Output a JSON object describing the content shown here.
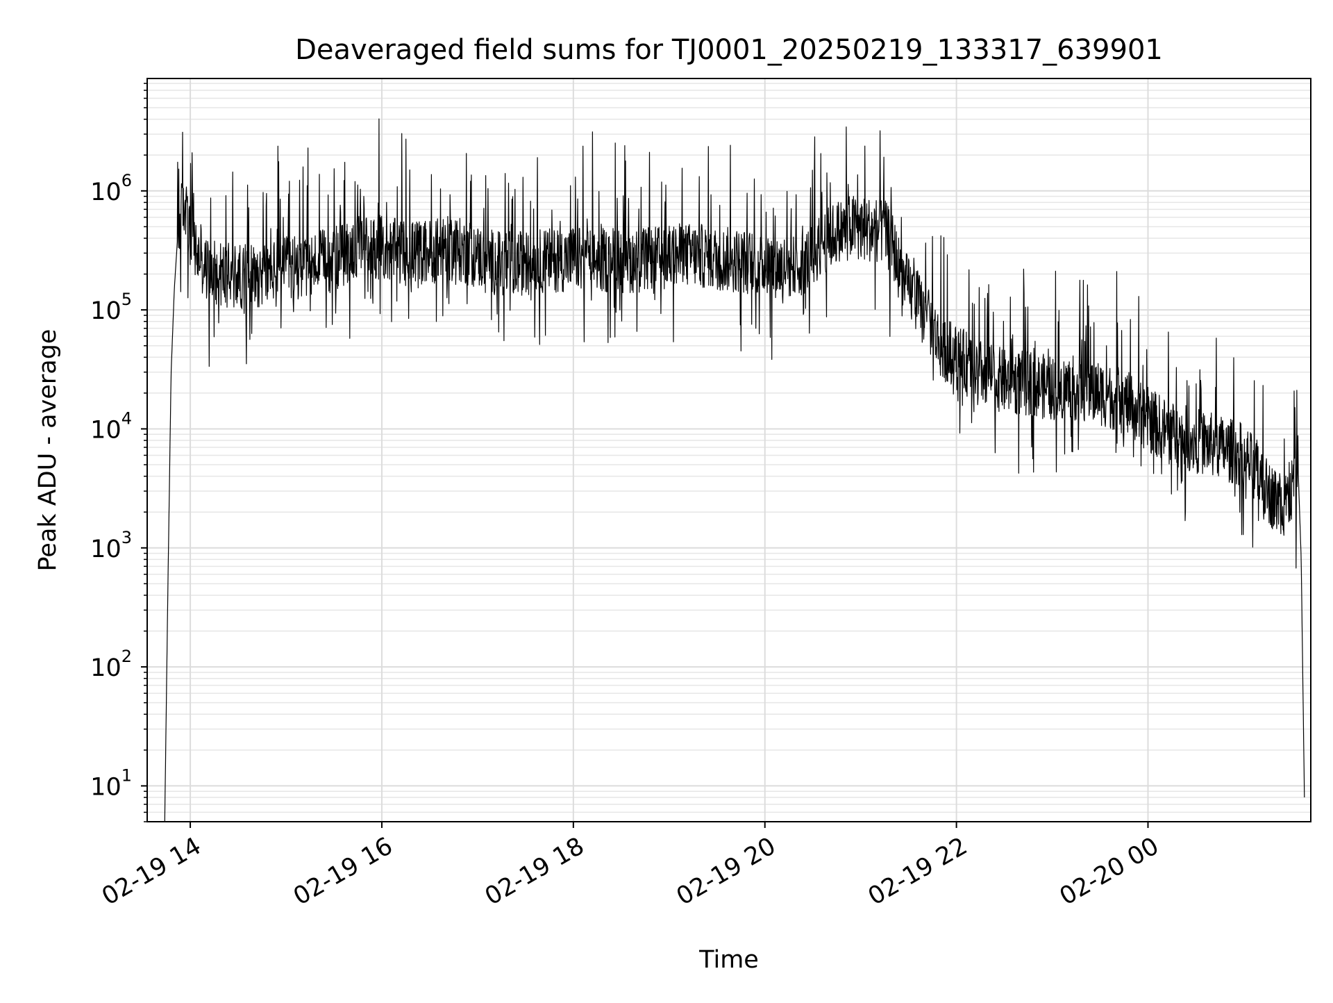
{
  "chart_data": {
    "type": "line",
    "title": "Deaveraged field sums for TJ0001_20250219_133317_639901",
    "xlabel": "Time",
    "ylabel": "Peak ADU - average",
    "yscale": "log",
    "xlim": [
      "2025-02-19 13:33",
      "2025-02-20 01:42"
    ],
    "ylim": [
      5,
      8800000
    ],
    "grid": true,
    "grid_minor": true,
    "line_color": "#000000",
    "x_ticks": [
      {
        "value": "2025-02-19 14:00",
        "label": "02-19 14"
      },
      {
        "value": "2025-02-19 16:00",
        "label": "02-19 16"
      },
      {
        "value": "2025-02-19 18:00",
        "label": "02-19 18"
      },
      {
        "value": "2025-02-19 20:00",
        "label": "02-19 20"
      },
      {
        "value": "2025-02-19 22:00",
        "label": "02-19 22"
      },
      {
        "value": "2025-02-20 00:00",
        "label": "02-20 00"
      }
    ],
    "y_ticks": [
      {
        "value": 10,
        "base": "10",
        "exp": "1"
      },
      {
        "value": 100,
        "base": "10",
        "exp": "2"
      },
      {
        "value": 1000,
        "base": "10",
        "exp": "3"
      },
      {
        "value": 10000,
        "base": "10",
        "exp": "4"
      },
      {
        "value": 100000,
        "base": "10",
        "exp": "5"
      },
      {
        "value": 1000000,
        "base": "10",
        "exp": "6"
      }
    ],
    "series": [
      {
        "x": [
          "2025-02-19 13:44",
          "2025-02-19 13:46",
          "2025-02-19 13:48",
          "2025-02-19 13:50",
          "2025-02-19 13:52",
          "2025-02-19 13:54",
          "2025-02-19 13:56",
          "2025-02-19 13:58",
          "2025-02-19 14:00",
          "2025-02-19 14:05",
          "2025-02-19 14:10",
          "2025-02-19 14:20",
          "2025-02-19 14:30",
          "2025-02-19 14:45",
          "2025-02-19 15:00",
          "2025-02-19 15:15",
          "2025-02-19 15:30",
          "2025-02-19 15:40",
          "2025-02-19 15:50",
          "2025-02-19 16:00",
          "2025-02-19 16:15",
          "2025-02-19 16:30",
          "2025-02-19 16:45",
          "2025-02-19 17:00",
          "2025-02-19 17:15",
          "2025-02-19 17:30",
          "2025-02-19 17:45",
          "2025-02-19 18:00",
          "2025-02-19 18:15",
          "2025-02-19 18:30",
          "2025-02-19 18:45",
          "2025-02-19 19:00",
          "2025-02-19 19:15",
          "2025-02-19 19:30",
          "2025-02-19 19:45",
          "2025-02-19 20:00",
          "2025-02-19 20:15",
          "2025-02-19 20:25",
          "2025-02-19 20:35",
          "2025-02-19 20:45",
          "2025-02-19 20:55",
          "2025-02-19 21:05",
          "2025-02-19 21:15",
          "2025-02-19 21:20",
          "2025-02-19 21:25",
          "2025-02-19 21:30",
          "2025-02-19 21:35",
          "2025-02-19 21:40",
          "2025-02-19 21:45",
          "2025-02-19 21:50",
          "2025-02-19 22:00",
          "2025-02-19 22:15",
          "2025-02-19 22:30",
          "2025-02-19 22:45",
          "2025-02-19 23:00",
          "2025-02-19 23:15",
          "2025-02-19 23:30",
          "2025-02-19 23:45",
          "2025-02-20 00:00",
          "2025-02-20 00:15",
          "2025-02-20 00:30",
          "2025-02-20 00:45",
          "2025-02-20 01:00",
          "2025-02-20 01:10",
          "2025-02-20 01:15",
          "2025-02-20 01:20",
          "2025-02-20 01:25",
          "2025-02-20 01:30",
          "2025-02-20 01:34",
          "2025-02-20 01:36",
          "2025-02-20 01:38"
        ],
        "y": [
          5,
          500,
          30000,
          150000,
          400000,
          600000,
          800000,
          600000,
          400000,
          280000,
          220000,
          200000,
          190000,
          200000,
          220000,
          240000,
          260000,
          320000,
          350000,
          330000,
          300000,
          310000,
          330000,
          280000,
          240000,
          250000,
          260000,
          270000,
          260000,
          260000,
          260000,
          280000,
          290000,
          270000,
          260000,
          240000,
          230000,
          250000,
          350000,
          450000,
          500000,
          480000,
          450000,
          350000,
          200000,
          150000,
          120000,
          90000,
          70000,
          50000,
          40000,
          30000,
          25000,
          24000,
          22000,
          22000,
          20000,
          17000,
          12000,
          9000,
          8000,
          7000,
          6000,
          4000,
          3000,
          2500,
          2200,
          3000,
          5000,
          800,
          8
        ]
      }
    ]
  }
}
